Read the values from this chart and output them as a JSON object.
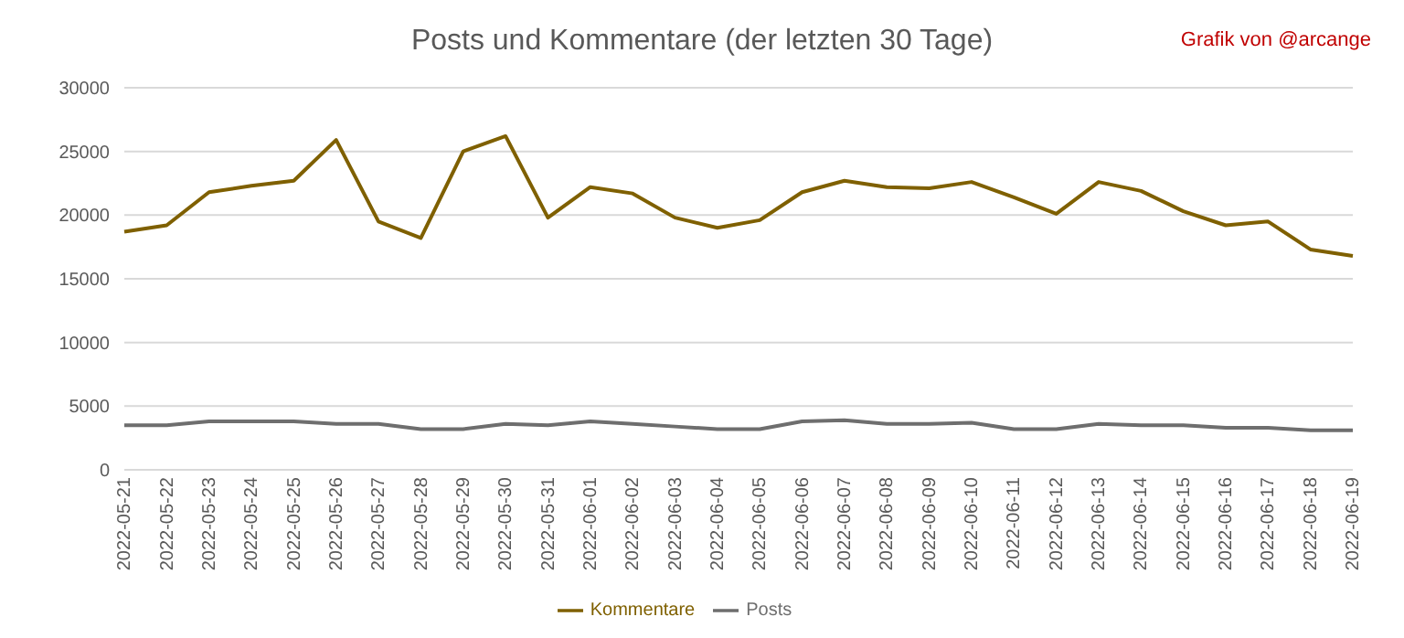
{
  "chart_data": {
    "type": "line",
    "title": "Posts und Kommentare (der letzten 30 Tage)",
    "annotations": [
      "Grafik von @arcange"
    ],
    "categories": [
      "2022-05-21",
      "2022-05-22",
      "2022-05-23",
      "2022-05-24",
      "2022-05-25",
      "2022-05-26",
      "2022-05-27",
      "2022-05-28",
      "2022-05-29",
      "2022-05-30",
      "2022-05-31",
      "2022-06-01",
      "2022-06-02",
      "2022-06-03",
      "2022-06-04",
      "2022-06-05",
      "2022-06-06",
      "2022-06-07",
      "2022-06-08",
      "2022-06-09",
      "2022-06-10",
      "2022-06-11",
      "2022-06-12",
      "2022-06-13",
      "2022-06-14",
      "2022-06-15",
      "2022-06-16",
      "2022-06-17",
      "2022-06-18",
      "2022-06-19"
    ],
    "series": [
      {
        "name": "Posts",
        "color": "#6e6e6e",
        "values": [
          3500,
          3500,
          3800,
          3800,
          3800,
          3600,
          3600,
          3200,
          3200,
          3600,
          3500,
          3800,
          3600,
          3400,
          3200,
          3200,
          3800,
          3900,
          3600,
          3600,
          3700,
          3200,
          3200,
          3600,
          3500,
          3500,
          3300,
          3300,
          3100,
          3100
        ]
      },
      {
        "name": "Kommentare",
        "color": "#7f6000",
        "values": [
          18700,
          19200,
          21800,
          22300,
          22700,
          25900,
          19500,
          18200,
          25000,
          26200,
          19800,
          22200,
          21700,
          19800,
          19000,
          19600,
          21800,
          22700,
          22200,
          22100,
          22600,
          21400,
          20100,
          22600,
          21900,
          20300,
          19200,
          19500,
          17300,
          16800
        ]
      }
    ],
    "ylim": [
      0,
      30000
    ],
    "yticks": [
      0,
      5000,
      10000,
      15000,
      20000,
      25000,
      30000
    ],
    "grid": "y",
    "legend": "bottom",
    "marker": "none",
    "line_style": "solid"
  }
}
